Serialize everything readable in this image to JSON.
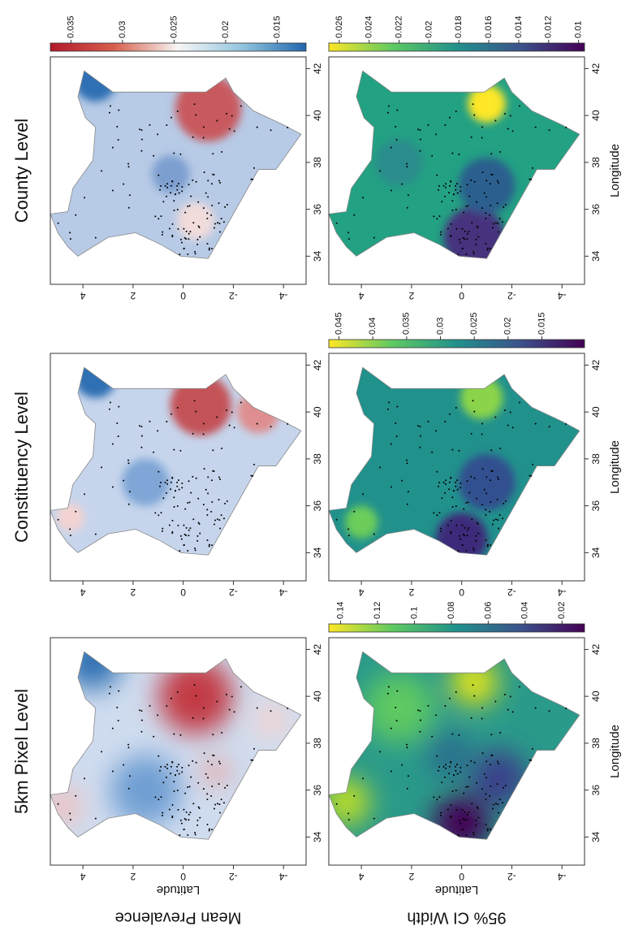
{
  "row_labels": [
    "Mean Prevalence",
    "95% CI Width"
  ],
  "columns": [
    {
      "title": "5km Pixel Level"
    },
    {
      "title": "Constituency Level"
    },
    {
      "title": "County Level"
    }
  ],
  "axes": {
    "xlabel": "Longitude",
    "ylabel": "Latitude",
    "xlim": [
      32.8,
      42.5
    ],
    "ylim": [
      -4.9,
      5.3
    ],
    "xticks": [
      34,
      36,
      38,
      40,
      42
    ],
    "yticks": [
      4,
      2,
      0,
      -2,
      -4
    ]
  },
  "colorbars": {
    "mean_prevalence": {
      "lim": [
        0.0122,
        0.037
      ],
      "ticks": [
        0.035,
        0.03,
        0.025,
        0.02,
        0.015
      ]
    },
    "ci_pixel": {
      "lim": [
        0.0078,
        0.1464
      ],
      "ticks": [
        0.14,
        0.12,
        0.1,
        0.08,
        0.06,
        0.04,
        0.02
      ]
    },
    "ci_constituency": {
      "lim": [
        0.0087,
        0.0465
      ],
      "ticks": [
        0.045,
        0.04,
        0.035,
        0.03,
        0.025,
        0.02,
        0.015
      ]
    },
    "ci_county": {
      "lim": [
        0.0096,
        0.0267
      ],
      "ticks": [
        0.026,
        0.024,
        0.022,
        0.02,
        0.018,
        0.016,
        0.014,
        0.012,
        0.01
      ]
    }
  }
}
